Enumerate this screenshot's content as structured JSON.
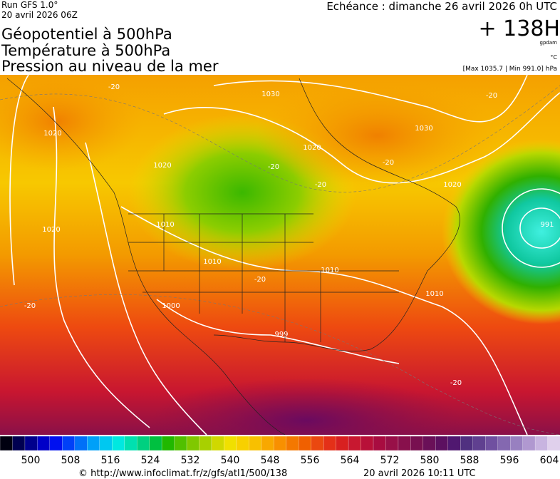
{
  "header": {
    "run": "Run GFS 1.0°",
    "run_date": "20 avril 2026 06Z",
    "titles": [
      "Géopotentiel à 500hPa",
      "Température à 500hPa",
      "Pression au niveau de la mer"
    ],
    "forecast": "Echéance : dimanche 26 avril 2026 0h UTC",
    "lead": "+ 138H",
    "unit_geo": "gpdam",
    "unit_temp": "°C",
    "pressure_range": "[Max 1035.7 | Min 991.0] hPa"
  },
  "map": {
    "labels": [
      "1030",
      "1030",
      "1020",
      "1020",
      "1020",
      "1020",
      "1020",
      "1010",
      "1010",
      "1010",
      "1010",
      "1000",
      "999",
      "991",
      "-20",
      "-20",
      "-20",
      "-20",
      "-20",
      "-20",
      "-20",
      "-20"
    ]
  },
  "colorbar": {
    "labels": [
      500,
      508,
      516,
      524,
      532,
      540,
      548,
      556,
      564,
      572,
      580,
      588,
      596,
      604
    ]
  },
  "footer": {
    "url": "© http://www.infoclimat.fr/z/gfs/atl1/500/138",
    "timestamp": "20 avril 2026 10:11 UTC"
  }
}
